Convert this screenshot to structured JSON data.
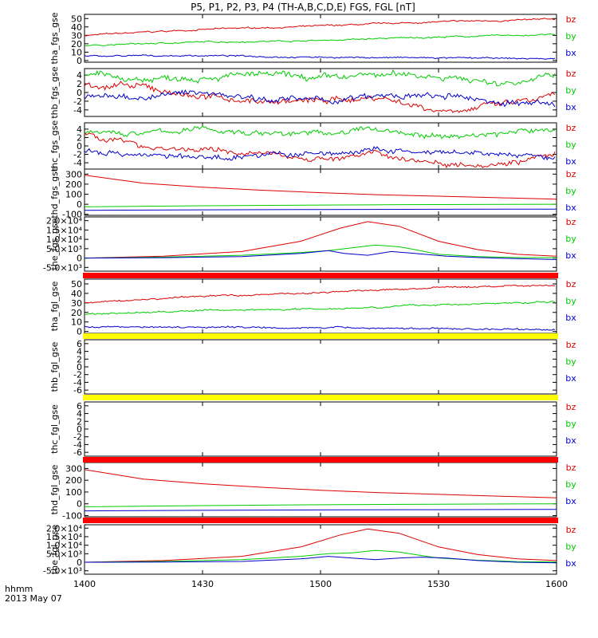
{
  "title": "P5, P1, P2, P3, P4 (TH-A,B,C,D,E) FGS, FGL [nT]",
  "xaxis": {
    "label_line1": "hhmm",
    "label_line2": "2013 May 07",
    "tick_labels": [
      "1400",
      "1430",
      "1500",
      "1530",
      "1600"
    ],
    "tick_minutes": [
      0,
      30,
      60,
      90,
      120
    ],
    "range_minutes": [
      0,
      120
    ]
  },
  "colors": {
    "bz": "#dd0000",
    "by": "#00cc00",
    "bx": "#0000cc",
    "bar_red": "#ff0000",
    "bar_yellow": "#ffff00"
  },
  "chart_data": [
    {
      "type": "line",
      "ylabel": "tha_fgs_gse",
      "ylim": [
        -2,
        55
      ],
      "ytick_values": [
        0,
        10,
        20,
        30,
        40,
        50
      ],
      "ytick_labels": [
        "0",
        "10",
        "20",
        "30",
        "40",
        "50"
      ],
      "legend": [
        "bz",
        "by",
        "bx"
      ],
      "noise": 1.2,
      "series": [
        {
          "name": "bz",
          "x": [
            0,
            30,
            60,
            90,
            120
          ],
          "y": [
            30,
            37,
            41,
            46,
            49
          ]
        },
        {
          "name": "by",
          "x": [
            0,
            30,
            60,
            90,
            120
          ],
          "y": [
            18,
            22,
            24,
            28,
            31
          ]
        },
        {
          "name": "bx",
          "x": [
            0,
            30,
            60,
            90,
            120
          ],
          "y": [
            5,
            6,
            4,
            3,
            2
          ]
        }
      ]
    },
    {
      "type": "line",
      "ylabel": "thb_fgs_gse",
      "ylim": [
        -5.5,
        5.5
      ],
      "ytick_values": [
        -4,
        -2,
        0,
        2,
        4
      ],
      "ytick_labels": [
        "-4",
        "-2",
        "0",
        "2",
        "4"
      ],
      "legend": [
        "bz",
        "by",
        "bx"
      ],
      "noise": 1.0,
      "series": [
        {
          "name": "bz",
          "x": [
            0,
            15,
            30,
            45,
            60,
            75,
            90,
            105,
            120
          ],
          "y": [
            2,
            1,
            -1,
            -2,
            -2,
            -1,
            -4,
            -3,
            -1
          ]
        },
        {
          "name": "by",
          "x": [
            0,
            15,
            30,
            45,
            60,
            75,
            90,
            105,
            120
          ],
          "y": [
            4,
            3,
            4,
            4,
            3,
            4,
            4,
            2,
            4
          ]
        },
        {
          "name": "bx",
          "x": [
            0,
            15,
            30,
            45,
            60,
            75,
            90,
            105,
            120
          ],
          "y": [
            -1,
            -1,
            0,
            -1,
            -2,
            -1,
            -1,
            -2,
            -3
          ]
        }
      ]
    },
    {
      "type": "line",
      "ylabel": "thc_fgs_gse",
      "ylim": [
        -5.5,
        5.5
      ],
      "ytick_values": [
        -4,
        -2,
        0,
        2,
        4
      ],
      "ytick_labels": [
        "-4",
        "-2",
        "0",
        "2",
        "4"
      ],
      "legend": [
        "bz",
        "by",
        "bx"
      ],
      "noise": 0.9,
      "series": [
        {
          "name": "bz",
          "x": [
            0,
            15,
            30,
            45,
            60,
            75,
            90,
            105,
            120
          ],
          "y": [
            3,
            0,
            -1,
            -2,
            -3,
            -2,
            -4,
            -4,
            -2
          ]
        },
        {
          "name": "by",
          "x": [
            0,
            15,
            30,
            45,
            60,
            75,
            90,
            105,
            120
          ],
          "y": [
            3,
            3,
            4,
            3,
            3,
            4,
            2,
            3,
            4
          ]
        },
        {
          "name": "bx",
          "x": [
            0,
            15,
            30,
            45,
            60,
            75,
            90,
            105,
            120
          ],
          "y": [
            -1,
            -2,
            -3,
            -2,
            -2,
            -1,
            -2,
            -2,
            -3
          ]
        }
      ]
    },
    {
      "type": "line",
      "ylabel": "thd_fgs_gse",
      "ylim": [
        -110,
        350
      ],
      "ytick_values": [
        -100,
        0,
        100,
        200,
        300
      ],
      "ytick_labels": [
        "-100",
        "0",
        "100",
        "200",
        "300"
      ],
      "legend": [
        "bz",
        "by",
        "bx"
      ],
      "noise": 0,
      "series": [
        {
          "name": "bz",
          "x": [
            0,
            15,
            30,
            45,
            60,
            75,
            90,
            105,
            120
          ],
          "y": [
            290,
            210,
            170,
            140,
            115,
            95,
            80,
            65,
            50
          ]
        },
        {
          "name": "by",
          "x": [
            0,
            30,
            60,
            90,
            120
          ],
          "y": [
            -25,
            -15,
            -8,
            -3,
            0
          ]
        },
        {
          "name": "bx",
          "x": [
            0,
            30,
            60,
            90,
            120
          ],
          "y": [
            -60,
            -55,
            -52,
            -50,
            -48
          ]
        }
      ]
    },
    {
      "type": "line",
      "ylabel": "the_fgs_gse",
      "ylim": [
        -7000,
        22000
      ],
      "ytick_values": [
        -5000,
        0,
        5000,
        10000,
        15000,
        20000
      ],
      "ytick_labels": [
        "-5.0×10³",
        "0",
        "5.0×10³",
        "1.0×10⁴",
        "1.5×10⁴",
        "2.0×10⁴"
      ],
      "legend": [
        "bz",
        "by",
        "bx"
      ],
      "noise": 0,
      "series": [
        {
          "name": "bz",
          "x": [
            0,
            20,
            40,
            55,
            65,
            72,
            80,
            90,
            100,
            110,
            120
          ],
          "y": [
            0,
            1000,
            3500,
            9000,
            16000,
            19500,
            17000,
            9000,
            4500,
            2000,
            1000
          ]
        },
        {
          "name": "by",
          "x": [
            0,
            20,
            40,
            55,
            62,
            68,
            74,
            80,
            84,
            90,
            100,
            110,
            120
          ],
          "y": [
            0,
            500,
            1500,
            3000,
            4000,
            5500,
            7000,
            6000,
            4500,
            2000,
            800,
            300,
            200
          ]
        },
        {
          "name": "bx",
          "x": [
            0,
            20,
            40,
            55,
            62,
            66,
            72,
            78,
            84,
            92,
            100,
            110,
            120
          ],
          "y": [
            0,
            200,
            800,
            2500,
            4000,
            2500,
            1500,
            3500,
            2500,
            1000,
            300,
            -300,
            -800
          ]
        }
      ]
    },
    {
      "type": "line",
      "ylabel": "tha_fgl_gse",
      "ylim": [
        -2,
        55
      ],
      "ytick_values": [
        0,
        10,
        20,
        30,
        40,
        50
      ],
      "ytick_labels": [
        "0",
        "10",
        "20",
        "30",
        "40",
        "50"
      ],
      "legend": [
        "bz",
        "by",
        "bx"
      ],
      "noise": 1.2,
      "series": [
        {
          "name": "bz",
          "x": [
            0,
            30,
            60,
            90,
            120
          ],
          "y": [
            30,
            37,
            41,
            46,
            49
          ]
        },
        {
          "name": "by",
          "x": [
            0,
            30,
            60,
            90,
            120
          ],
          "y": [
            18,
            22,
            24,
            28,
            31
          ]
        },
        {
          "name": "bx",
          "x": [
            0,
            30,
            60,
            90,
            120
          ],
          "y": [
            5,
            5,
            4,
            3,
            2
          ]
        }
      ]
    },
    {
      "type": "line",
      "ylabel": "thb_fgl_gse",
      "ylim": [
        -7,
        7
      ],
      "ytick_values": [
        -6,
        -4,
        -2,
        0,
        2,
        4,
        6
      ],
      "ytick_labels": [
        "-6",
        "-4",
        "-2",
        "0",
        "2",
        "4",
        "6"
      ],
      "legend": [
        "bz",
        "by",
        "bx"
      ],
      "noise": 0,
      "series": []
    },
    {
      "type": "line",
      "ylabel": "thc_fgl_gse",
      "ylim": [
        -7,
        7
      ],
      "ytick_values": [
        -6,
        -4,
        -2,
        0,
        2,
        4,
        6
      ],
      "ytick_labels": [
        "-6",
        "-4",
        "-2",
        "0",
        "2",
        "4",
        "6"
      ],
      "legend": [
        "bz",
        "by",
        "bx"
      ],
      "noise": 0,
      "series": []
    },
    {
      "type": "line",
      "ylabel": "thd_fgl_gse",
      "ylim": [
        -110,
        350
      ],
      "ytick_values": [
        -100,
        0,
        100,
        200,
        300
      ],
      "ytick_labels": [
        "-100",
        "0",
        "100",
        "200",
        "300"
      ],
      "legend": [
        "bz",
        "by",
        "bx"
      ],
      "noise": 0,
      "series": [
        {
          "name": "bz",
          "x": [
            0,
            15,
            30,
            45,
            60,
            75,
            90,
            105,
            120
          ],
          "y": [
            290,
            210,
            170,
            140,
            115,
            95,
            80,
            65,
            50
          ]
        },
        {
          "name": "by",
          "x": [
            0,
            30,
            60,
            90,
            120
          ],
          "y": [
            -25,
            -15,
            -8,
            -3,
            0
          ]
        },
        {
          "name": "bx",
          "x": [
            0,
            30,
            60,
            90,
            120
          ],
          "y": [
            -60,
            -55,
            -52,
            -50,
            -48
          ]
        }
      ]
    },
    {
      "type": "line",
      "ylabel": "the_fgl_gse",
      "ylim": [
        -7000,
        22000
      ],
      "ytick_values": [
        -5000,
        0,
        5000,
        10000,
        15000,
        20000
      ],
      "ytick_labels": [
        "-5.0×10³",
        "0",
        "5.0×10³",
        "1.0×10⁴",
        "1.5×10⁴",
        "2.0×10⁴"
      ],
      "legend": [
        "bz",
        "by",
        "bx"
      ],
      "noise": 0,
      "series": [
        {
          "name": "bz",
          "x": [
            0,
            20,
            40,
            55,
            65,
            72,
            80,
            90,
            100,
            110,
            120
          ],
          "y": [
            0,
            1000,
            3500,
            9000,
            16000,
            19500,
            17000,
            9000,
            4500,
            2000,
            1000
          ]
        },
        {
          "name": "by",
          "x": [
            0,
            20,
            40,
            55,
            62,
            68,
            74,
            80,
            84,
            90,
            100,
            110,
            120
          ],
          "y": [
            0,
            500,
            1500,
            3500,
            5000,
            5500,
            7000,
            6000,
            4500,
            2500,
            1200,
            400,
            200
          ]
        },
        {
          "name": "bx",
          "x": [
            0,
            20,
            40,
            55,
            62,
            68,
            74,
            80,
            86,
            92,
            100,
            110,
            120
          ],
          "y": [
            0,
            100,
            500,
            2000,
            3500,
            2500,
            1500,
            2500,
            3000,
            2500,
            1000,
            0,
            -300
          ]
        }
      ]
    }
  ]
}
